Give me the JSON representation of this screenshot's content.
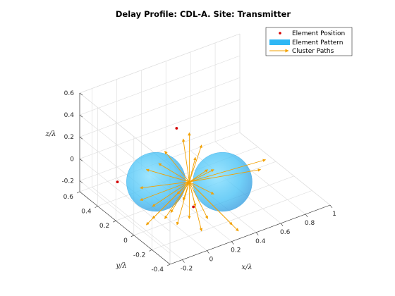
{
  "chart_data": {
    "type": "3d-scatter-with-paths",
    "title": "Delay Profile: CDL-A. Site: Transmitter",
    "xlabel": "x/λ",
    "ylabel": "y/λ",
    "zlabel": "z/λ",
    "xlim": [
      -0.3,
      1.0
    ],
    "ylim": [
      -0.4,
      0.6
    ],
    "zlim": [
      -0.3,
      0.6
    ],
    "x_ticks": [
      "-0.2",
      "0",
      "0.2",
      "0.4",
      "0.6",
      "0.8",
      "1"
    ],
    "x_tick_values": [
      -0.2,
      0,
      0.2,
      0.4,
      0.6,
      0.8,
      1.0
    ],
    "y_ticks": [
      "-0.4",
      "-0.2",
      "0",
      "0.2",
      "0.4",
      "0.6"
    ],
    "y_tick_values": [
      -0.4,
      -0.2,
      0,
      0.2,
      0.4,
      0.6
    ],
    "z_ticks": [
      "-0.2",
      "0",
      "0.2",
      "0.4",
      "0.6"
    ],
    "z_tick_values": [
      -0.2,
      0,
      0.2,
      0.4,
      0.6
    ],
    "grid": true,
    "legend_position": "top-right",
    "legend": [
      {
        "name": "Element Position",
        "marker": "dot",
        "color": "#d40000"
      },
      {
        "name": "Element Pattern",
        "marker": "patch",
        "color": "#2fb7f5"
      },
      {
        "name": "Cluster Paths",
        "marker": "arrow",
        "color": "#f2a000"
      }
    ],
    "colors": {
      "position": "#d40000",
      "pattern": "#2fb7f5",
      "paths": "#f2a000"
    },
    "element_positions": [
      {
        "x": -0.25,
        "y": 0.25,
        "z": 0.0
      },
      {
        "x": 0.45,
        "y": 0.55,
        "z": 0.0
      },
      {
        "x": 0.0,
        "y": -0.25,
        "z": 0.0
      }
    ],
    "pattern_center": {
      "x": 0.15,
      "y": 0.0,
      "z": 0.0
    },
    "pattern_lobes": [
      {
        "center_dx": -0.27,
        "center_dy": 0.0,
        "radius": 0.24
      },
      {
        "center_dx": 0.27,
        "center_dy": 0.0,
        "radius": 0.24
      }
    ],
    "cluster_paths": [
      {
        "dx": 0.62,
        "dy": -0.18,
        "dz": 0.18
      },
      {
        "dx": 0.58,
        "dy": -0.1,
        "dz": 0.12
      },
      {
        "dx": -0.05,
        "dy": -0.35,
        "dz": 0.3
      },
      {
        "dx": -0.2,
        "dy": -0.25,
        "dz": 0.33
      },
      {
        "dx": 0.0,
        "dy": -0.4,
        "dz": 0.36
      },
      {
        "dx": 0.05,
        "dy": -0.2,
        "dz": 0.34
      },
      {
        "dx": -0.35,
        "dy": -0.1,
        "dz": 0.28
      },
      {
        "dx": -0.4,
        "dy": 0.05,
        "dz": 0.2
      },
      {
        "dx": -0.3,
        "dy": 0.2,
        "dz": 0.1
      },
      {
        "dx": 0.1,
        "dy": -0.3,
        "dz": 0.25
      },
      {
        "dx": -0.1,
        "dy": 0.1,
        "dz": 0.22
      },
      {
        "dx": 0.15,
        "dy": -0.1,
        "dz": 0.3
      },
      {
        "dx": -0.25,
        "dy": -0.15,
        "dz": 0.26
      },
      {
        "dx": -0.1,
        "dy": 0.35,
        "dz": -0.45
      },
      {
        "dx": -0.3,
        "dy": 0.3,
        "dz": -0.3
      },
      {
        "dx": 0.1,
        "dy": 0.4,
        "dz": -0.4
      },
      {
        "dx": 0.0,
        "dy": 0.3,
        "dz": -0.35
      },
      {
        "dx": 0.4,
        "dy": 0.4,
        "dz": -0.35
      },
      {
        "dx": 0.35,
        "dy": 0.35,
        "dz": -0.25
      },
      {
        "dx": -0.4,
        "dy": 0.15,
        "dz": -0.15
      },
      {
        "dx": -0.15,
        "dy": 0.25,
        "dz": -0.3
      },
      {
        "dx": -0.35,
        "dy": 0.35,
        "dz": -0.1
      },
      {
        "dx": 0.05,
        "dy": 0.2,
        "dz": -0.3
      },
      {
        "dx": -0.05,
        "dy": 0.15,
        "dz": -0.4
      },
      {
        "dx": 0.2,
        "dy": 0.1,
        "dz": -0.3
      },
      {
        "dx": -0.2,
        "dy": 0.3,
        "dz": -0.22
      },
      {
        "dx": 0.15,
        "dy": 0.3,
        "dz": -0.2
      },
      {
        "dx": 0.2,
        "dy": -0.1,
        "dz": 0.2
      }
    ]
  }
}
